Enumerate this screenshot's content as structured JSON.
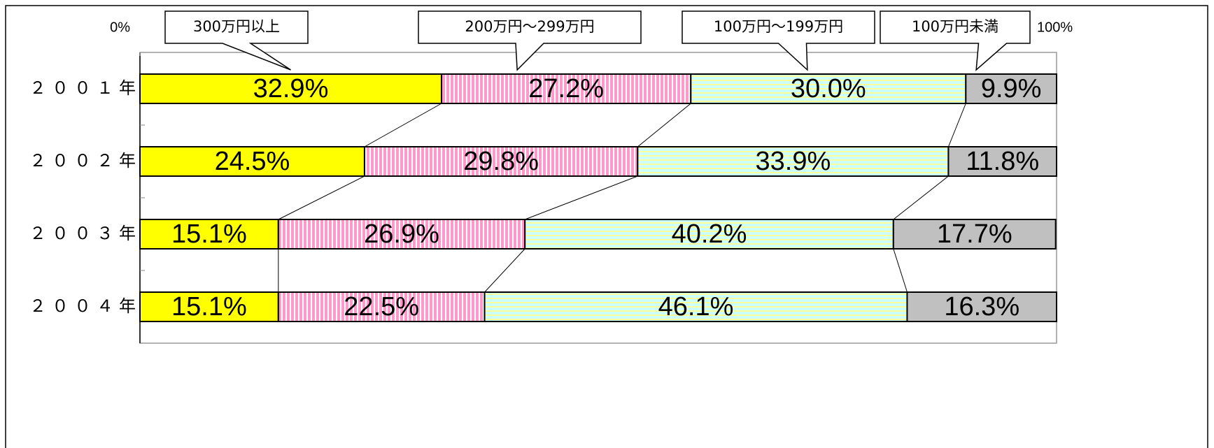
{
  "chart_data": {
    "type": "stacked-barh",
    "categories": [
      "２００１年",
      "２００２年",
      "２００３年",
      "２００４年"
    ],
    "xlim": [
      0,
      100
    ],
    "xticks": [
      {
        "value": 0,
        "label": "0%"
      },
      {
        "value": 100,
        "label": "100%"
      }
    ],
    "series": [
      {
        "name": "300万円以上",
        "color": "#ffff00",
        "values": [
          32.9,
          24.5,
          15.1,
          15.1
        ],
        "value_labels": [
          "32.9%",
          "24.5%",
          "15.1%",
          "15.1%"
        ]
      },
      {
        "name": "200万円～299万円",
        "color": "#ff99cc",
        "pattern": "vertical",
        "values": [
          27.2,
          29.8,
          26.9,
          22.5
        ],
        "value_labels": [
          "27.2%",
          "29.8%",
          "26.9%",
          "22.5%"
        ]
      },
      {
        "name": "100万円～199万円",
        "color": "#ccffff",
        "pattern": "horizontal",
        "values": [
          30.0,
          33.9,
          40.2,
          46.1
        ],
        "value_labels": [
          "30.0%",
          "33.9%",
          "40.2%",
          "46.1%"
        ]
      },
      {
        "name": "100万円未満",
        "color": "#c0c0c0",
        "values": [
          9.9,
          11.8,
          17.7,
          16.3
        ],
        "value_labels": [
          "9.9%",
          "11.8%",
          "17.7%",
          "16.3%"
        ]
      }
    ]
  }
}
